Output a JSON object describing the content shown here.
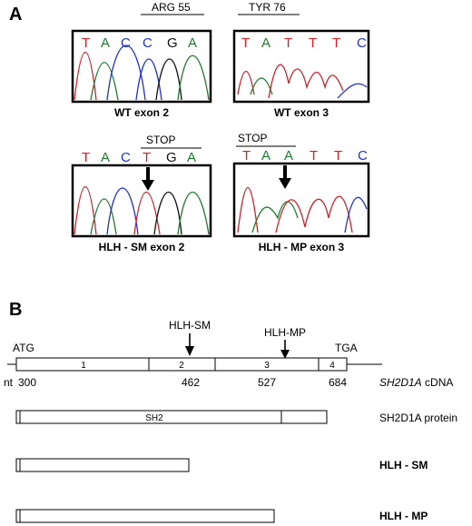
{
  "panel_a": {
    "label": "A",
    "colors": {
      "T": "#d2202a",
      "A": "#1e7a2e",
      "C": "#2233c8",
      "G": "#111111"
    },
    "traces": [
      {
        "caption": "WT exon 2",
        "header": "ARG 55",
        "bases": [
          "T",
          "A",
          "C",
          "C",
          "G",
          "A"
        ]
      },
      {
        "caption": "WT exon 3",
        "header": "TYR 76",
        "bases": [
          "T",
          "A",
          "T",
          "T",
          "T",
          "C"
        ]
      },
      {
        "caption": "HLH - SM  exon 2",
        "header": "STOP",
        "bases": [
          "T",
          "A",
          "C",
          "T",
          "G",
          "A"
        ]
      },
      {
        "caption": "HLH - MP exon 3",
        "header": "STOP",
        "bases": [
          "T",
          "A",
          "A",
          "T",
          "T",
          "C"
        ]
      }
    ]
  },
  "panel_b": {
    "label": "B",
    "atg": "ATG",
    "tga": "TGA",
    "mutations": [
      "HLH-SM",
      "HLH-MP"
    ],
    "exons": [
      "1",
      "2",
      "3",
      "4"
    ],
    "nt_prefix": "nt",
    "positions": [
      "300",
      "462",
      "527",
      "684"
    ],
    "cdna_gene": "SH2D1A",
    "cdna_suffix": " cDNA",
    "domain": "SH2",
    "protein_label": "SH2D1A protein",
    "truncated": [
      "HLH - SM",
      "HLH - MP"
    ]
  }
}
